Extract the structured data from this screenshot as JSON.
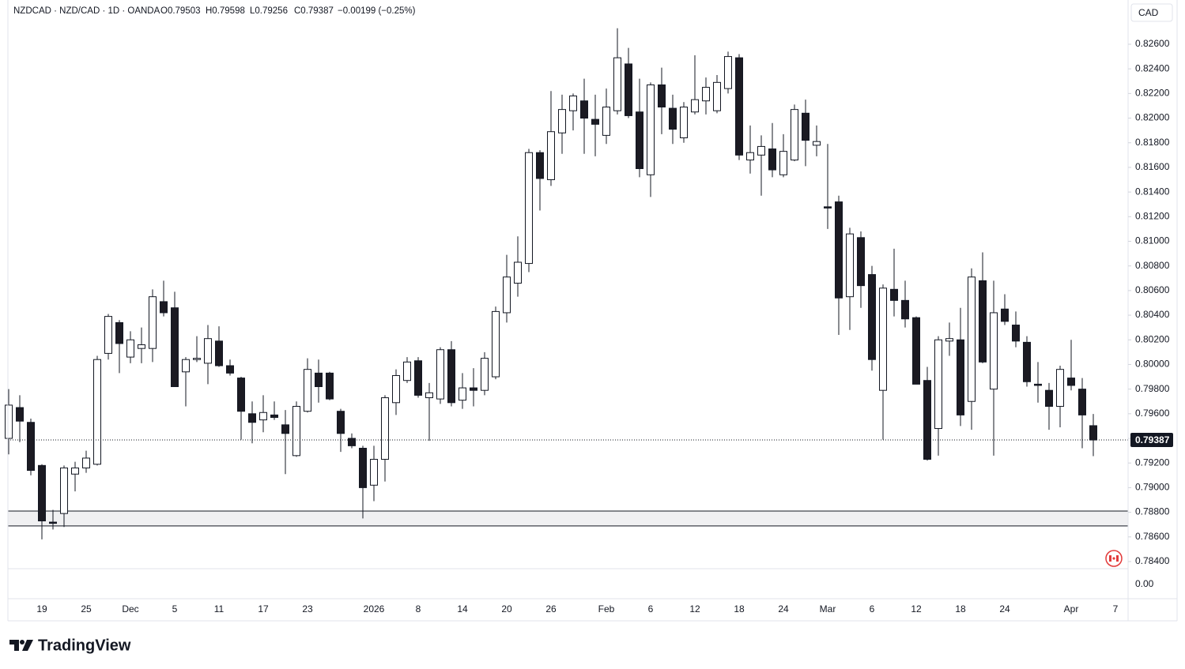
{
  "chart_data": {
    "type": "candlestick",
    "symbol": "NZDCAD · NZD/CAD · 1D · OANDA",
    "ohlc_labels": [
      "O0.79503",
      "H0.79598",
      "L0.79256",
      "C0.79387"
    ],
    "change": "−0.00199 (−0.25%)",
    "currency": "CAD",
    "lower_pane_label": "0.00",
    "branding": "TradingView",
    "up_color": "#ffffff",
    "down_color": "#1b1a22",
    "wick_color": "#131722",
    "zone": [
      0.7881,
      0.78689
    ],
    "zone_color": "#f0f0f2",
    "last_price": 0.79387,
    "ylim": [
      0.78342,
      0.82959
    ],
    "yticks": [
      {
        "value": 0.784,
        "label": "0.78400"
      },
      {
        "value": 0.786,
        "label": "0.78600"
      },
      {
        "value": 0.788,
        "label": "0.78800"
      },
      {
        "value": 0.79,
        "label": "0.79000"
      },
      {
        "value": 0.792,
        "label": "0.79200"
      },
      {
        "value": 0.794,
        "label": "0.79400"
      },
      {
        "value": 0.796,
        "label": "0.79600"
      },
      {
        "value": 0.798,
        "label": "0.79800"
      },
      {
        "value": 0.8,
        "label": "0.80000"
      },
      {
        "value": 0.802,
        "label": "0.80200"
      },
      {
        "value": 0.804,
        "label": "0.80400"
      },
      {
        "value": 0.806,
        "label": "0.80600"
      },
      {
        "value": 0.808,
        "label": "0.80800"
      },
      {
        "value": 0.81,
        "label": "0.81000"
      },
      {
        "value": 0.812,
        "label": "0.81200"
      },
      {
        "value": 0.814,
        "label": "0.81400"
      },
      {
        "value": 0.816,
        "label": "0.81600"
      },
      {
        "value": 0.818,
        "label": "0.81800"
      },
      {
        "value": 0.82,
        "label": "0.82000"
      },
      {
        "value": 0.822,
        "label": "0.82200"
      },
      {
        "value": 0.824,
        "label": "0.82400"
      },
      {
        "value": 0.826,
        "label": "0.82600"
      }
    ],
    "categories": [
      null,
      null,
      null,
      "19",
      null,
      null,
      null,
      "25",
      null,
      null,
      null,
      "Dec",
      null,
      null,
      null,
      "5",
      null,
      null,
      null,
      "11",
      null,
      null,
      null,
      "17",
      null,
      null,
      null,
      "23",
      null,
      null,
      null,
      null,
      null,
      "2026",
      null,
      null,
      null,
      "8",
      null,
      null,
      null,
      "14",
      null,
      null,
      null,
      "20",
      null,
      null,
      null,
      "26",
      null,
      null,
      null,
      null,
      "Feb",
      null,
      null,
      null,
      "6",
      null,
      null,
      null,
      "12",
      null,
      null,
      null,
      "18",
      null,
      null,
      null,
      "24",
      null,
      null,
      null,
      "Mar",
      null,
      null,
      null,
      "6",
      null,
      null,
      null,
      "12",
      null,
      null,
      null,
      "18",
      null,
      null,
      null,
      "24",
      null,
      null,
      null,
      null,
      null,
      "Apr",
      null,
      null,
      null,
      "7"
    ],
    "open": [
      0.794,
      0.7965,
      0.7953,
      0.7918,
      0.7872,
      0.7879,
      0.7911,
      0.7916,
      0.7919,
      0.8009,
      0.8034,
      0.8006,
      0.8013,
      0.8013,
      0.8051,
      0.8046,
      0.7994,
      0.8004,
      0.8001,
      0.8019,
      0.7999,
      0.7989,
      0.796,
      0.7955,
      0.7959,
      0.7951,
      0.7926,
      0.7962,
      0.7993,
      0.7993,
      0.7962,
      0.794,
      0.7932,
      0.7902,
      0.7923,
      0.7969,
      0.7987,
      0.8003,
      0.7973,
      0.7972,
      0.8012,
      0.7971,
      0.7981,
      0.7979,
      0.799,
      0.8042,
      0.8066,
      0.8082,
      0.8172,
      0.815,
      0.8188,
      0.8206,
      0.8214,
      0.8199,
      0.8186,
      0.8206,
      0.8244,
      0.8205,
      0.8154,
      0.8227,
      0.8208,
      0.8184,
      0.8205,
      0.8214,
      0.8206,
      0.8224,
      0.8249,
      0.8166,
      0.817,
      0.8175,
      0.8154,
      0.8166,
      0.8204,
      0.8178,
      0.8128,
      0.8132,
      0.8055,
      0.8103,
      0.8073,
      0.7979,
      0.8061,
      0.8052,
      0.8038,
      0.7987,
      0.7948,
      0.8019,
      0.802,
      0.797,
      0.8068,
      0.798,
      0.8045,
      0.8032,
      0.8018,
      0.7984,
      0.7979,
      0.7966,
      0.7989,
      0.798,
      0.79503,
      null,
      null
    ],
    "high": [
      0.798,
      0.7975,
      0.7956,
      0.7919,
      0.7882,
      0.7918,
      0.7921,
      0.793,
      0.8007,
      0.8041,
      0.8036,
      0.8027,
      0.803,
      0.8061,
      0.8068,
      0.8059,
      0.8006,
      0.8023,
      0.8032,
      0.8031,
      0.8004,
      0.799,
      0.797,
      0.7975,
      0.797,
      0.7963,
      0.797,
      0.8005,
      0.8004,
      0.7994,
      0.7964,
      0.7944,
      0.7934,
      0.7934,
      0.7975,
      0.7996,
      0.8006,
      0.8006,
      0.7985,
      0.8014,
      0.8019,
      0.7993,
      0.7997,
      0.801,
      0.8047,
      0.8089,
      0.8104,
      0.8175,
      0.8174,
      0.8222,
      0.8219,
      0.822,
      0.8232,
      0.8219,
      0.8224,
      0.8273,
      0.8257,
      0.8232,
      0.8229,
      0.8241,
      0.8219,
      0.8213,
      0.8251,
      0.8233,
      0.8235,
      0.8254,
      0.8252,
      0.8194,
      0.8186,
      0.8196,
      0.8187,
      0.8211,
      0.8215,
      0.8194,
      0.8179,
      0.8137,
      0.8111,
      0.8108,
      0.808,
      0.8065,
      0.8094,
      0.8068,
      0.8039,
      0.7998,
      0.8023,
      0.8034,
      0.8046,
      0.8078,
      0.8091,
      0.8068,
      0.8057,
      0.8043,
      0.8023,
      0.8002,
      0.7985,
      0.7999,
      0.802,
      0.7989,
      0.79598,
      null,
      null
    ],
    "low": [
      0.7927,
      0.7937,
      0.791,
      0.7858,
      0.7866,
      0.7868,
      0.7897,
      0.7912,
      0.7918,
      0.8004,
      0.7993,
      0.8001,
      0.8001,
      0.8002,
      0.8039,
      0.7982,
      0.7966,
      0.8002,
      0.7984,
      0.7998,
      0.7991,
      0.7939,
      0.7936,
      0.7945,
      0.7955,
      0.7911,
      0.7925,
      0.7961,
      0.7969,
      0.7971,
      0.7929,
      0.7932,
      0.7875,
      0.7889,
      0.7905,
      0.7959,
      0.7985,
      0.7973,
      0.7938,
      0.7968,
      0.7966,
      0.7964,
      0.7966,
      0.7975,
      0.7988,
      0.8034,
      0.8055,
      0.8075,
      0.8125,
      0.8145,
      0.8171,
      0.819,
      0.8171,
      0.8169,
      0.8179,
      0.8203,
      0.82,
      0.8152,
      0.8136,
      0.8187,
      0.8179,
      0.818,
      0.8203,
      0.8203,
      0.8204,
      0.822,
      0.8166,
      0.8155,
      0.8137,
      0.8152,
      0.8152,
      0.8165,
      0.8161,
      0.8169,
      0.811,
      0.8024,
      0.8028,
      0.8046,
      0.7995,
      0.7939,
      0.8039,
      0.803,
      0.7984,
      0.7922,
      0.7926,
      0.8007,
      0.795,
      0.7947,
      0.8001,
      0.7926,
      0.8032,
      0.8014,
      0.7982,
      0.7969,
      0.7947,
      0.7949,
      0.7979,
      0.7932,
      0.79256,
      null,
      null
    ],
    "close": [
      0.7967,
      0.7954,
      0.7914,
      0.7873,
      0.7871,
      0.7916,
      0.7916,
      0.7924,
      0.8004,
      0.8039,
      0.8017,
      0.802,
      0.8016,
      0.8055,
      0.8042,
      0.7982,
      0.8004,
      0.8005,
      0.8021,
      0.7999,
      0.7993,
      0.7962,
      0.7953,
      0.7961,
      0.7957,
      0.7944,
      0.7966,
      0.7996,
      0.7982,
      0.7972,
      0.7944,
      0.7934,
      0.79,
      0.7923,
      0.7973,
      0.7991,
      0.8002,
      0.7975,
      0.7977,
      0.8012,
      0.7969,
      0.7981,
      0.7979,
      0.8005,
      0.8043,
      0.8071,
      0.8083,
      0.8172,
      0.8151,
      0.8189,
      0.8207,
      0.8218,
      0.82,
      0.8195,
      0.8209,
      0.8249,
      0.8202,
      0.8159,
      0.8227,
      0.8209,
      0.8191,
      0.8209,
      0.8215,
      0.8225,
      0.8229,
      0.825,
      0.817,
      0.8172,
      0.8177,
      0.8158,
      0.8173,
      0.8207,
      0.8182,
      0.8181,
      0.8127,
      0.8054,
      0.8106,
      0.8064,
      0.8004,
      0.8062,
      0.8052,
      0.8037,
      0.7984,
      0.7923,
      0.802,
      0.8021,
      0.7959,
      0.8071,
      0.8002,
      0.8042,
      0.8035,
      0.8019,
      0.7986,
      0.7983,
      0.7966,
      0.7996,
      0.7983,
      0.7959,
      0.79387,
      null,
      null
    ]
  }
}
